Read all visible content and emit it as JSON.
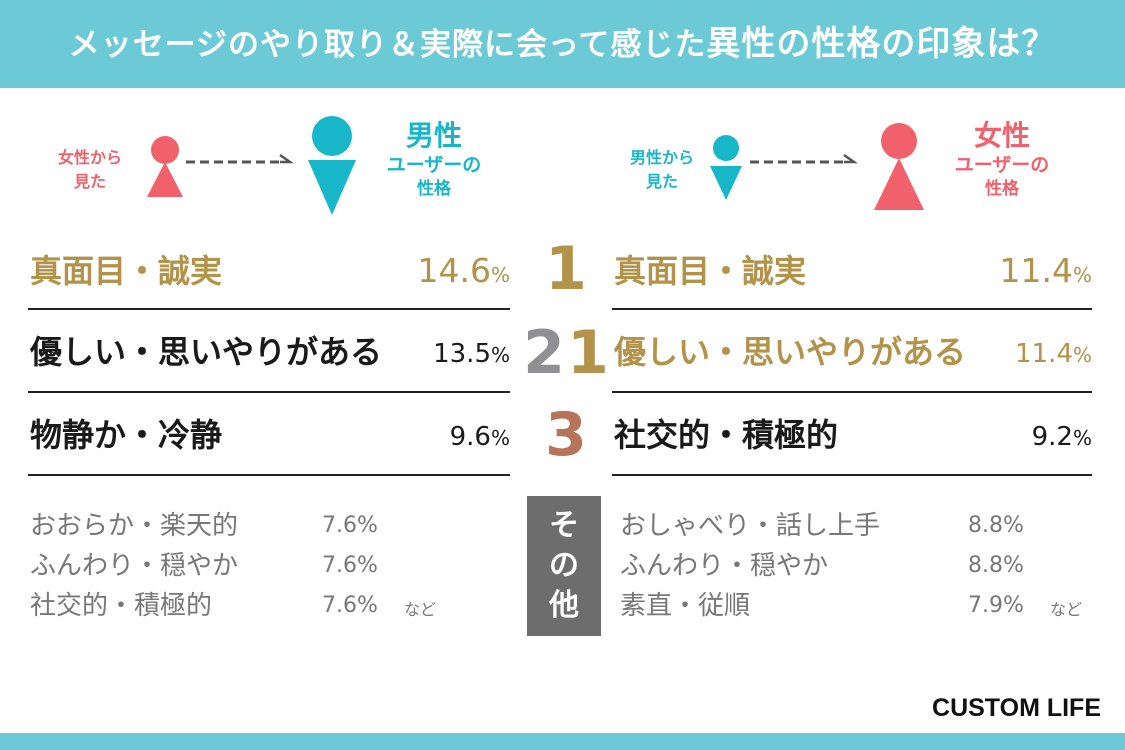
{
  "header": {
    "title_normal": "メッセージのやり取り＆実際に会って感じた",
    "title_highlight": "異性の性格の印象は？"
  },
  "left_panel": {
    "from_line1": "女性から",
    "from_line2": "見た",
    "target_big": "男性",
    "target_mid": "ユーザーの",
    "target_small": "性格"
  },
  "right_panel": {
    "from_line1": "男性から",
    "from_line2": "見た",
    "target_big": "女性",
    "target_mid": "ユーザーの",
    "target_small": "性格"
  },
  "ranks": [
    "1",
    "2",
    "1",
    "3"
  ],
  "percent_unit": "%",
  "other_box": {
    "line1": "そ",
    "line2": "の",
    "line3": "他"
  },
  "etc_label": "など",
  "logo": "CUSTOM LIFE",
  "colors": {
    "header": "#6ccad6",
    "pink": "#f0616b",
    "teal": "#18b6c9",
    "gold": "#b3924a",
    "silver": "#8f8f94",
    "bronze": "#b8745a",
    "other_box": "#6d6d6d"
  },
  "icons": [
    "female-person-icon",
    "male-person-icon",
    "dashed-arrow-icon"
  ],
  "chart_data": {
    "type": "table",
    "title": "メッセージのやり取り＆実際に会って感じた異性の性格の印象は？",
    "groups": [
      {
        "name": "女性から見た男性ユーザーの性格",
        "top": [
          {
            "rank": "1",
            "trait": "真面目・誠実",
            "value": 14.6
          },
          {
            "rank": "2",
            "trait": "優しい・思いやりがある",
            "value": 13.5
          },
          {
            "rank": "3",
            "trait": "物静か・冷静",
            "value": 9.6
          }
        ],
        "others": [
          {
            "trait": "おおらか・楽天的",
            "value": 7.6
          },
          {
            "trait": "ふんわり・穏やか",
            "value": 7.6
          },
          {
            "trait": "社交的・積極的",
            "value": 7.6
          }
        ]
      },
      {
        "name": "男性から見た女性ユーザーの性格",
        "top": [
          {
            "rank": "1",
            "trait": "真面目・誠実",
            "value": 11.4
          },
          {
            "rank": "1",
            "trait": "優しい・思いやりがある",
            "value": 11.4
          },
          {
            "rank": "3",
            "trait": "社交的・積極的",
            "value": 9.2
          }
        ],
        "others": [
          {
            "trait": "おしゃべり・話し上手",
            "value": 8.8
          },
          {
            "trait": "ふんわり・穏やか",
            "value": 8.8
          },
          {
            "trait": "素直・従順",
            "value": 7.9
          }
        ]
      }
    ]
  }
}
